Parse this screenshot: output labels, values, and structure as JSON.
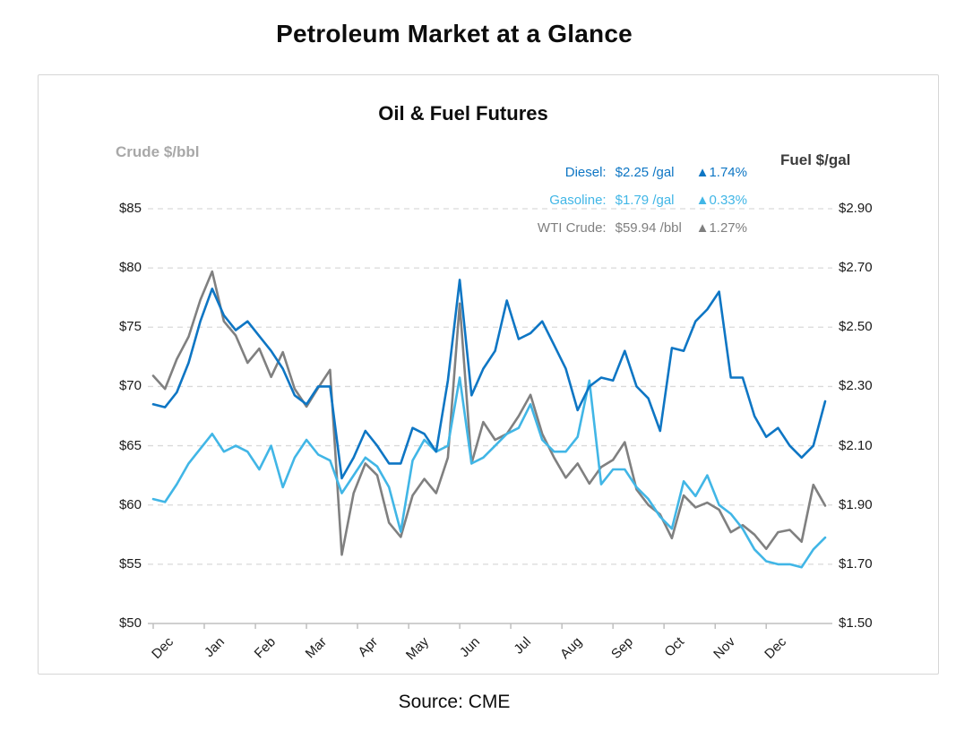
{
  "page": {
    "title": "Petroleum Market at a Glance",
    "source": "Source: CME"
  },
  "chart_data": {
    "type": "line",
    "title": "Oil & Fuel Futures",
    "legend_position": "top-right",
    "grid": "horizontal-dashed",
    "colors": {
      "diesel": "#0E76C4",
      "gasoline": "#41B6E6",
      "wti_crude": "#808080",
      "gridline": "#D9D9D9",
      "axis_line": "#BFBFBF"
    },
    "left_axis": {
      "title": "Crude $/bbl",
      "unit": "$/bbl",
      "range": [
        50,
        85
      ],
      "tick_values": [
        85,
        80,
        75,
        70,
        65,
        60,
        55,
        50
      ],
      "tick_labels": [
        "$85",
        "$80",
        "$75",
        "$70",
        "$65",
        "$60",
        "$55",
        "$50"
      ]
    },
    "right_axis": {
      "title": "Fuel $/gal",
      "unit": "$/gal",
      "range": [
        1.5,
        2.9
      ],
      "tick_values": [
        2.9,
        2.7,
        2.5,
        2.3,
        2.1,
        1.9,
        1.7,
        1.5
      ],
      "tick_labels": [
        "$2.90",
        "$2.70",
        "$2.50",
        "$2.30",
        "$2.10",
        "$1.90",
        "$1.70",
        "$1.50"
      ]
    },
    "x_axis": {
      "unit": "weeks from start (Dec through following late Dec)",
      "weeks_total": 57,
      "tick_weeks": [
        0,
        4.33,
        8.67,
        13,
        17.33,
        21.67,
        26,
        30.33,
        34.67,
        39,
        43.33,
        47.67,
        52
      ],
      "tick_labels": [
        "Dec",
        "Jan",
        "Feb",
        "Mar",
        "Apr",
        "May",
        "Jun",
        "Jul",
        "Aug",
        "Sep",
        "Oct",
        "Nov",
        "Dec"
      ]
    },
    "x_weeks": [
      0,
      1,
      2,
      3,
      4,
      5,
      6,
      7,
      8,
      9,
      10,
      11,
      12,
      13,
      14,
      15,
      16,
      17,
      18,
      19,
      20,
      21,
      22,
      23,
      24,
      25,
      26,
      27,
      28,
      29,
      30,
      31,
      32,
      33,
      34,
      35,
      36,
      37,
      38,
      39,
      40,
      41,
      42,
      43,
      44,
      45,
      46,
      47,
      48,
      49,
      50,
      51,
      52,
      53,
      54,
      55,
      56,
      57
    ],
    "series": [
      {
        "name": "WTI Crude",
        "axis": "left",
        "unit": "$/bbl",
        "color": "#808080",
        "values": [
          70.9,
          69.8,
          72.3,
          74.2,
          77.3,
          79.7,
          75.5,
          74.3,
          72.0,
          73.2,
          70.8,
          72.9,
          69.8,
          68.3,
          69.9,
          71.4,
          55.8,
          61.0,
          63.5,
          62.5,
          58.5,
          57.3,
          60.8,
          62.2,
          61.0,
          64.0,
          77.0,
          63.5,
          67.0,
          65.5,
          66.0,
          67.5,
          69.3,
          66.0,
          64.0,
          62.3,
          63.5,
          61.8,
          63.2,
          63.8,
          65.3,
          61.3,
          60.0,
          59.2,
          57.2,
          60.8,
          59.8,
          60.2,
          59.6,
          57.7,
          58.3,
          57.5,
          56.3,
          57.7,
          57.9,
          56.9,
          61.7,
          59.94
        ]
      },
      {
        "name": "Gasoline",
        "axis": "right",
        "unit": "$/gal",
        "color": "#41B6E6",
        "values": [
          1.92,
          1.91,
          1.97,
          2.04,
          2.09,
          2.14,
          2.08,
          2.1,
          2.08,
          2.02,
          2.1,
          1.96,
          2.06,
          2.12,
          2.07,
          2.05,
          1.94,
          2.0,
          2.06,
          2.03,
          1.96,
          1.81,
          2.05,
          2.12,
          2.08,
          2.1,
          2.33,
          2.04,
          2.06,
          2.1,
          2.14,
          2.16,
          2.24,
          2.12,
          2.08,
          2.08,
          2.13,
          2.32,
          1.97,
          2.02,
          2.02,
          1.96,
          1.92,
          1.86,
          1.82,
          1.98,
          1.93,
          2.0,
          1.9,
          1.87,
          1.82,
          1.75,
          1.71,
          1.7,
          1.7,
          1.69,
          1.75,
          1.79
        ]
      },
      {
        "name": "Diesel",
        "axis": "right",
        "unit": "$/gal",
        "color": "#0E76C4",
        "values": [
          2.24,
          2.23,
          2.28,
          2.38,
          2.52,
          2.63,
          2.54,
          2.49,
          2.52,
          2.47,
          2.42,
          2.36,
          2.27,
          2.24,
          2.3,
          2.3,
          1.99,
          2.06,
          2.15,
          2.1,
          2.04,
          2.04,
          2.16,
          2.14,
          2.08,
          2.32,
          2.66,
          2.27,
          2.36,
          2.42,
          2.59,
          2.46,
          2.48,
          2.52,
          2.44,
          2.36,
          2.22,
          2.3,
          2.33,
          2.32,
          2.42,
          2.3,
          2.26,
          2.15,
          2.43,
          2.42,
          2.52,
          2.56,
          2.62,
          2.33,
          2.33,
          2.2,
          2.13,
          2.16,
          2.1,
          2.06,
          2.1,
          2.25
        ]
      }
    ],
    "legend": [
      {
        "label": "Diesel:",
        "value": "$2.25 /gal",
        "change": "▲1.74%",
        "color": "#0E76C4"
      },
      {
        "label": "Gasoline:",
        "value": "$1.79 /gal",
        "change": "▲0.33%",
        "color": "#41B6E6"
      },
      {
        "label": "WTI Crude:",
        "value": "$59.94 /bbl",
        "change": "▲1.27%",
        "color": "#7F7F7F"
      }
    ]
  }
}
